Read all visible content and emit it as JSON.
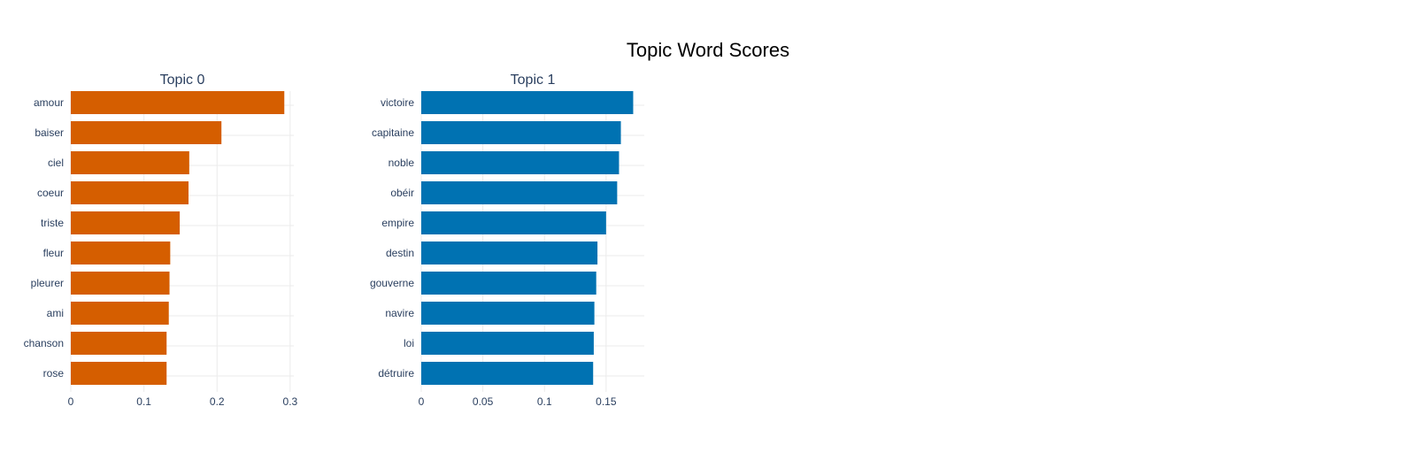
{
  "title": "Topic Word Scores",
  "chart_data": [
    {
      "type": "bar",
      "orientation": "horizontal",
      "title": "Topic 0",
      "color": "#D55E00",
      "categories": [
        "amour",
        "baiser",
        "ciel",
        "coeur",
        "triste",
        "fleur",
        "pleurer",
        "ami",
        "chanson",
        "rose"
      ],
      "values": [
        0.292,
        0.206,
        0.162,
        0.161,
        0.149,
        0.136,
        0.135,
        0.134,
        0.131,
        0.131
      ],
      "xlim": [
        0,
        0.305
      ],
      "xticks": [
        0,
        0.1,
        0.2,
        0.3
      ],
      "xtick_labels": [
        "0",
        "0.1",
        "0.2",
        "0.3"
      ],
      "grid": true
    },
    {
      "type": "bar",
      "orientation": "horizontal",
      "title": "Topic 1",
      "color": "#0072B2",
      "categories": [
        "victoire",
        "capitaine",
        "noble",
        "obéir",
        "empire",
        "destin",
        "gouverne",
        "navire",
        "loi",
        "détruire"
      ],
      "values": [
        0.172,
        0.162,
        0.1605,
        0.159,
        0.15,
        0.143,
        0.142,
        0.1405,
        0.14,
        0.1395
      ],
      "xlim": [
        0,
        0.181
      ],
      "xticks": [
        0,
        0.05,
        0.1,
        0.15
      ],
      "xtick_labels": [
        "0",
        "0.05",
        "0.1",
        "0.15"
      ],
      "grid": true
    }
  ]
}
